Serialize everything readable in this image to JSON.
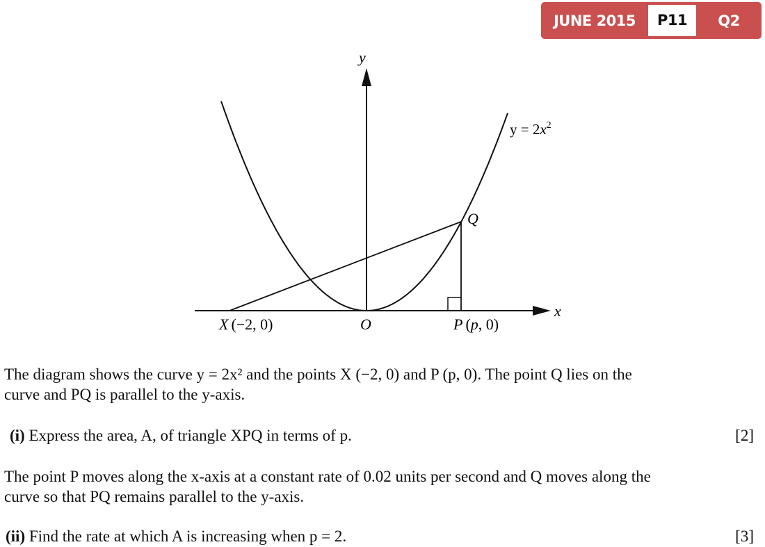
{
  "badge": {
    "session": "JUNE 2015",
    "paper": "P11",
    "question": "Q2",
    "color": "#c9504f"
  },
  "diagram": {
    "y_axis": "y",
    "x_axis": "x",
    "curve_label": "y = 2x²",
    "curve_eq_lhs": "y = 2",
    "curve_eq_var": "x",
    "curve_eq_exp": "2",
    "point_q": "Q",
    "origin": "O",
    "point_x": {
      "name": "X",
      "coords": "(−2, 0)"
    },
    "point_p": {
      "name": "P",
      "coords_open": "(",
      "coords_var": "p",
      "coords_close": ", 0)"
    }
  },
  "text": {
    "intro_1": "The diagram shows the curve y = 2x² and the points X (−2, 0) and P (p, 0). The point Q lies on the",
    "intro_2": "curve and PQ is parallel to the y-axis.",
    "part_i_label": "(i)",
    "part_i": "Express the area, A, of triangle XPQ in terms of p.",
    "part_i_marks": "[2]",
    "middle_1": "The point P moves along the x-axis at a constant rate of 0.02 units per second and Q moves along the",
    "middle_2": "curve so that PQ remains parallel to the y-axis.",
    "part_ii_label": "(ii)",
    "part_ii": "Find the rate at which A is increasing when p = 2.",
    "part_ii_marks": "[3]"
  }
}
